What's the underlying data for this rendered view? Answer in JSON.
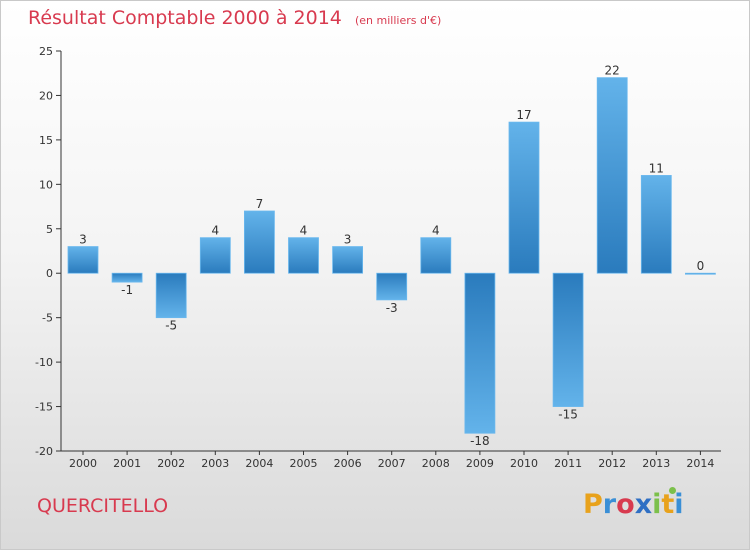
{
  "header": {
    "title": "Résultat Comptable 2000 à 2014",
    "subtitle": "(en milliers d'€)"
  },
  "footer": {
    "commune": "QUERCITELLO",
    "logo_letters": [
      "P",
      "r",
      "o",
      "x",
      "i",
      "t",
      "i"
    ],
    "logo_colors": [
      "#e8a21c",
      "#3a8fd6",
      "#d83a4f",
      "#2f6fc4",
      "#7cc04b",
      "#e8a21c",
      "#3a8fd6"
    ]
  },
  "chart_data": {
    "type": "bar",
    "categories": [
      "2000",
      "2001",
      "2002",
      "2003",
      "2004",
      "2005",
      "2006",
      "2007",
      "2008",
      "2009",
      "2010",
      "2011",
      "2012",
      "2013",
      "2014"
    ],
    "values": [
      3,
      -1,
      -5,
      4,
      7,
      4,
      3,
      -3,
      4,
      -18,
      17,
      -15,
      22,
      11,
      0
    ],
    "value_labels": [
      "3",
      "-1",
      "-5",
      "4",
      "7",
      "4",
      "3",
      "-3",
      "4",
      "-18",
      "17",
      "-15",
      "22",
      "11",
      "0"
    ],
    "ylim": [
      -20,
      25
    ],
    "yticks": [
      -20,
      -15,
      -10,
      -5,
      0,
      5,
      10,
      15,
      20,
      25
    ],
    "ytick_labels": [
      "-20",
      "-15",
      "-10",
      "-5",
      "0",
      "5",
      "10",
      "15",
      "20",
      "25"
    ],
    "grid": false,
    "legend": "none",
    "bar_color_top": "#63b3ea",
    "bar_color_bottom": "#2a7bbd"
  }
}
